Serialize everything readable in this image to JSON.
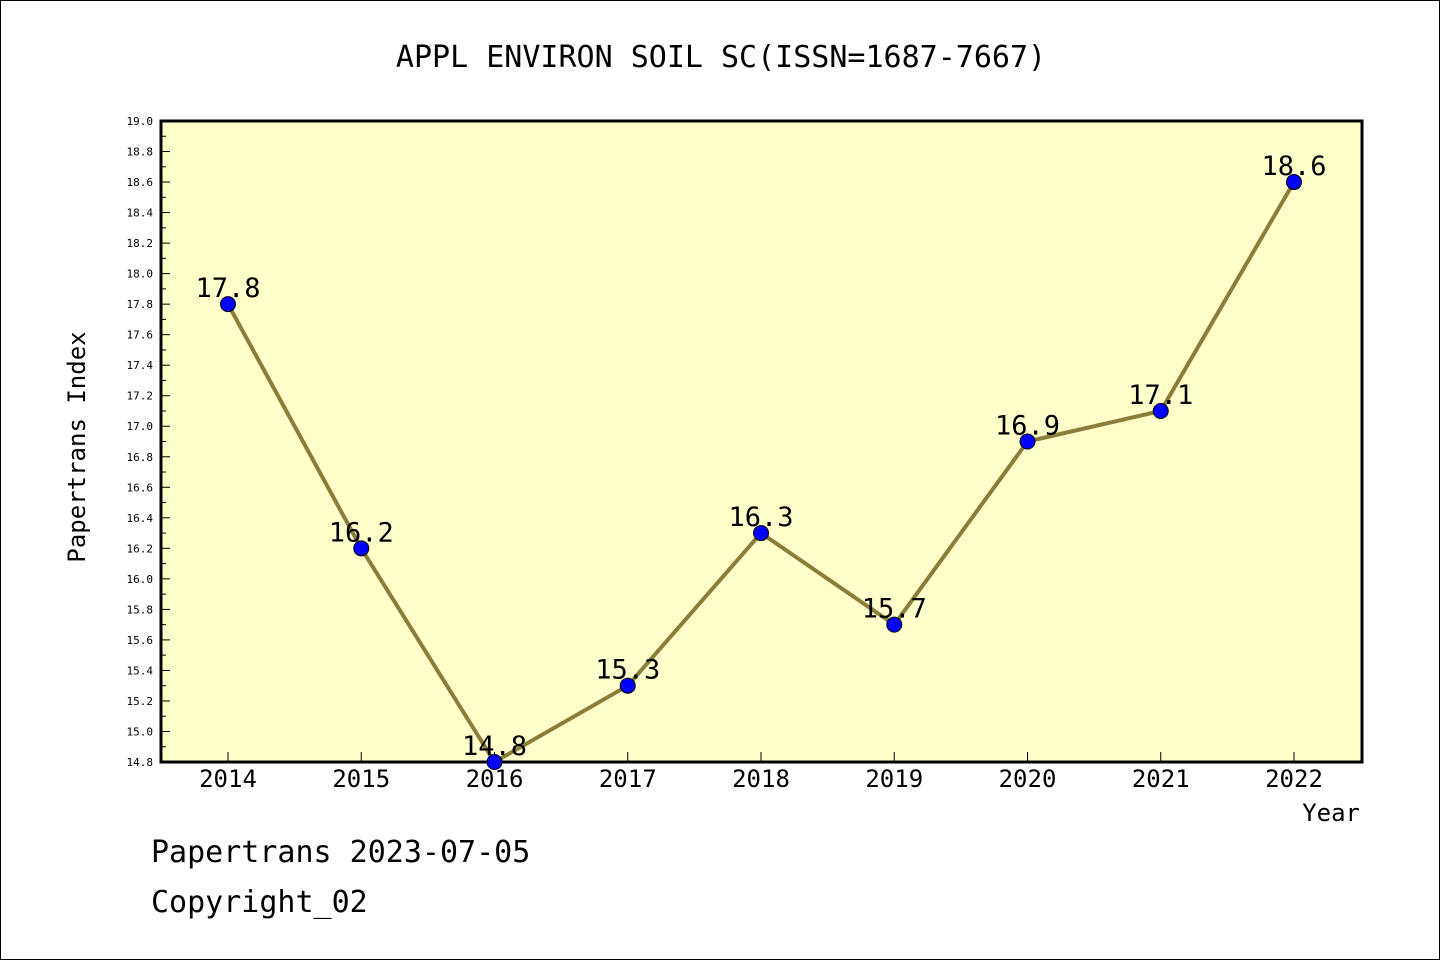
{
  "chart_data": {
    "type": "line",
    "title": "APPL ENVIRON SOIL SC(ISSN=1687-7667)",
    "xlabel": "Year",
    "ylabel": "Papertrans Index",
    "categories": [
      "2014",
      "2015",
      "2016",
      "2017",
      "2018",
      "2019",
      "2020",
      "2021",
      "2022"
    ],
    "series": [
      {
        "values": [
          17.8,
          16.2,
          14.8,
          15.3,
          16.3,
          15.7,
          16.9,
          17.1,
          18.6
        ],
        "data_labels": [
          "17.8",
          "16.2",
          "14.8",
          "15.3",
          "16.3",
          "15.7",
          "16.9",
          "17.1",
          "18.6"
        ]
      }
    ],
    "ylim": [
      14.8,
      19.0
    ],
    "yticks": [
      "14.8",
      "15.0",
      "15.2",
      "15.4",
      "15.6",
      "15.8",
      "16.0",
      "16.2",
      "16.4",
      "16.6",
      "16.8",
      "17.0",
      "17.2",
      "17.4",
      "17.6",
      "17.8",
      "18.0",
      "18.2",
      "18.4",
      "18.6",
      "18.8",
      "19.0"
    ],
    "grid": false,
    "colors": {
      "plot_background": "#ffffcc",
      "line": "#8b7d3a",
      "marker": "#0000ff"
    }
  },
  "footer": {
    "date_line": "Papertrans 2023-07-05",
    "copyright": "Copyright_02"
  }
}
